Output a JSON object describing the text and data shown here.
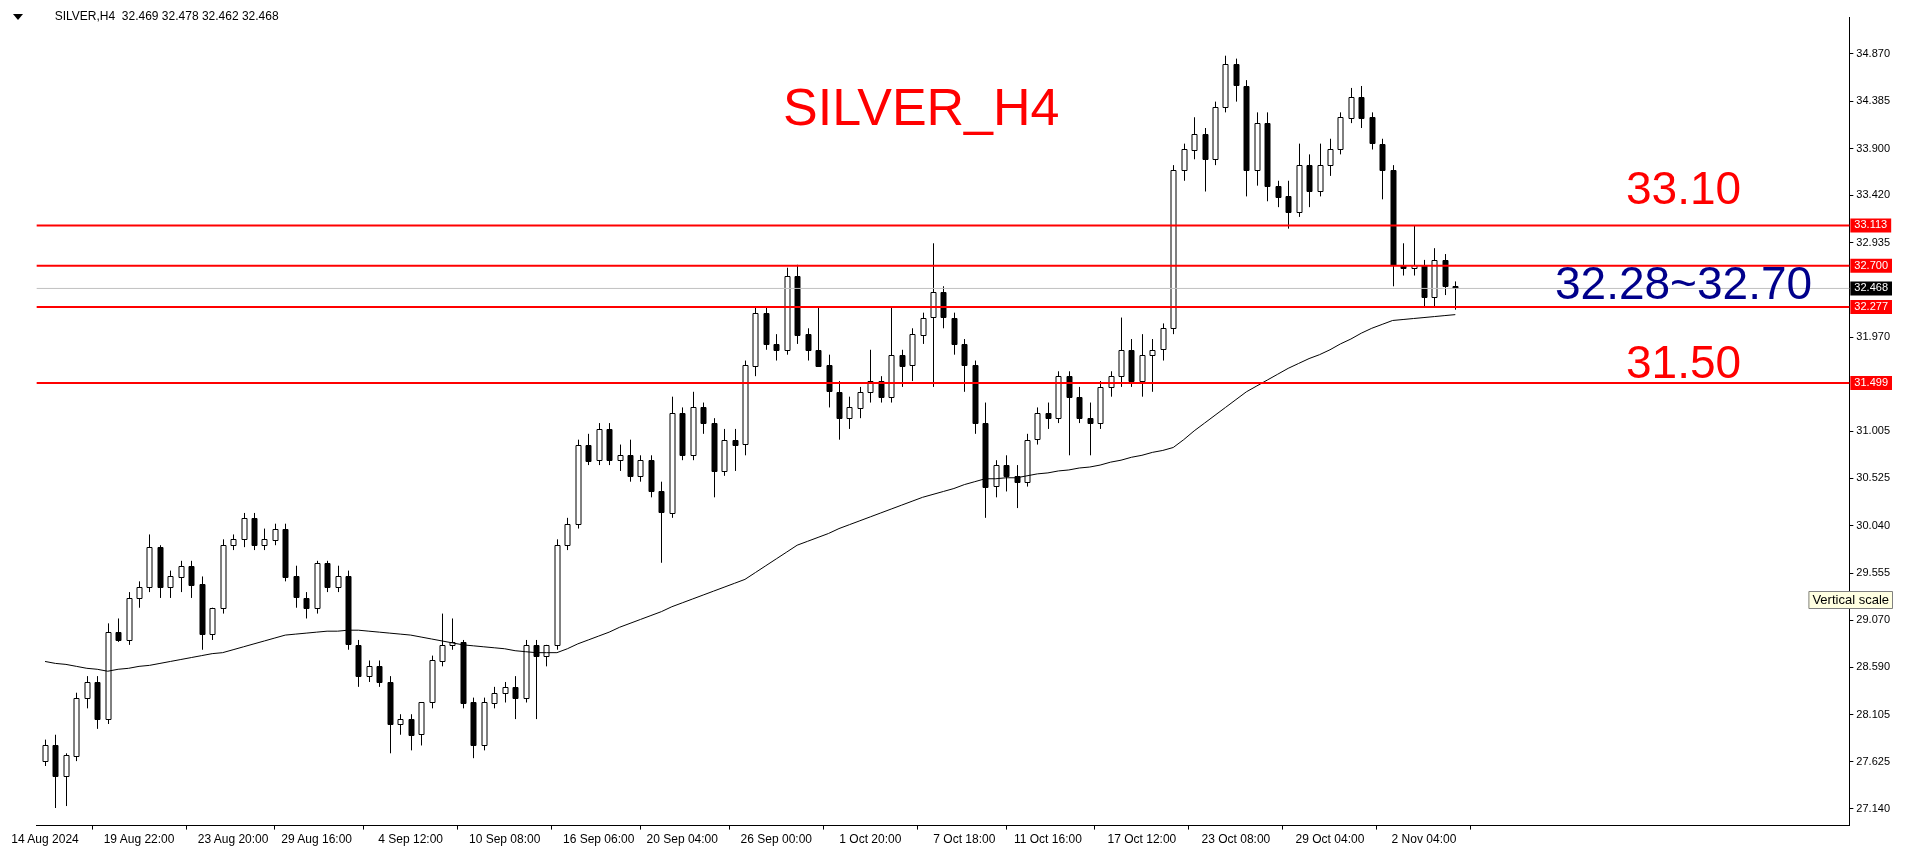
{
  "chart_data": {
    "type": "candlestick",
    "title": "SILVER_H4",
    "subtitle": "SILVER,H4  32.469 32.478 32.462 32.468",
    "color": "#000000",
    "categories": [
      "14 Aug 2024",
      null,
      null,
      null,
      null,
      null,
      null,
      null,
      null,
      "19 Aug 22:00",
      null,
      null,
      null,
      null,
      null,
      null,
      null,
      null,
      "23 Aug 20:00",
      null,
      null,
      null,
      null,
      null,
      null,
      null,
      "29 Aug 16:00",
      null,
      null,
      null,
      null,
      null,
      null,
      null,
      null,
      "4 Sep 12:00",
      null,
      null,
      null,
      null,
      null,
      null,
      null,
      null,
      "10 Sep 08:00",
      null,
      null,
      null,
      null,
      null,
      null,
      null,
      null,
      "16 Sep 06:00",
      null,
      null,
      null,
      null,
      null,
      null,
      null,
      "20 Sep 04:00",
      null,
      null,
      null,
      null,
      null,
      null,
      null,
      null,
      "26 Sep 00:00",
      null,
      null,
      null,
      null,
      null,
      null,
      null,
      null,
      "1 Oct 20:00",
      null,
      null,
      null,
      null,
      null,
      null,
      null,
      null,
      "7 Oct 18:00",
      null,
      null,
      null,
      null,
      null,
      null,
      null,
      "11 Oct 16:00",
      null,
      null,
      null,
      null,
      null,
      null,
      null,
      null,
      "17 Oct 12:00",
      null,
      null,
      null,
      null,
      null,
      null,
      null,
      null,
      "23 Oct 08:00",
      null,
      null,
      null,
      null,
      null,
      null,
      null,
      null,
      "29 Oct 04:00",
      null,
      null,
      null,
      null,
      null,
      null,
      null,
      null,
      "2 Nov 04:00",
      null,
      null,
      null
    ],
    "ohlc": [
      [
        27.63,
        27.85,
        27.58,
        27.79
      ],
      [
        27.79,
        27.9,
        27.15,
        27.47
      ],
      [
        27.47,
        27.71,
        27.17,
        27.69
      ],
      [
        27.69,
        28.33,
        27.63,
        28.28
      ],
      [
        28.28,
        28.5,
        28.17,
        28.44
      ],
      [
        28.44,
        28.5,
        27.96,
        28.06
      ],
      [
        28.06,
        29.04,
        28.01,
        28.95
      ],
      [
        28.95,
        29.09,
        28.85,
        28.87
      ],
      [
        28.87,
        29.36,
        28.82,
        29.3
      ],
      [
        29.3,
        29.47,
        29.2,
        29.41
      ],
      [
        29.41,
        29.95,
        29.36,
        29.82
      ],
      [
        29.82,
        29.84,
        29.3,
        29.41
      ],
      [
        29.41,
        29.58,
        29.3,
        29.52
      ],
      [
        29.52,
        29.68,
        29.36,
        29.63
      ],
      [
        29.63,
        29.68,
        29.3,
        29.44
      ],
      [
        29.44,
        29.52,
        28.77,
        28.93
      ],
      [
        28.93,
        29.2,
        28.87,
        29.2
      ],
      [
        29.2,
        29.9,
        29.14,
        29.84
      ],
      [
        29.84,
        29.95,
        29.79,
        29.9
      ],
      [
        29.9,
        30.17,
        29.82,
        30.12
      ],
      [
        30.12,
        30.17,
        29.79,
        29.84
      ],
      [
        29.84,
        30.01,
        29.79,
        29.9
      ],
      [
        29.9,
        30.06,
        29.84,
        30.01
      ],
      [
        30.01,
        30.06,
        29.47,
        29.52
      ],
      [
        29.52,
        29.63,
        29.2,
        29.3
      ],
      [
        29.3,
        29.36,
        29.09,
        29.2
      ],
      [
        29.2,
        29.68,
        29.14,
        29.66
      ],
      [
        29.66,
        29.68,
        29.36,
        29.41
      ],
      [
        29.41,
        29.63,
        29.36,
        29.52
      ],
      [
        29.52,
        29.58,
        28.77,
        28.82
      ],
      [
        28.82,
        28.87,
        28.39,
        28.5
      ],
      [
        28.5,
        28.66,
        28.44,
        28.6
      ],
      [
        28.6,
        28.66,
        28.39,
        28.44
      ],
      [
        28.44,
        28.5,
        27.71,
        28.01
      ],
      [
        28.01,
        28.11,
        27.9,
        28.06
      ],
      [
        28.06,
        28.11,
        27.74,
        27.9
      ],
      [
        27.9,
        28.23,
        27.79,
        28.23
      ],
      [
        28.23,
        28.71,
        28.17,
        28.66
      ],
      [
        28.66,
        29.14,
        28.6,
        28.82
      ],
      [
        28.82,
        29.09,
        28.77,
        28.85
      ],
      [
        28.85,
        28.87,
        28.17,
        28.23
      ],
      [
        28.23,
        28.28,
        27.66,
        27.79
      ],
      [
        27.79,
        28.28,
        27.74,
        28.23
      ],
      [
        28.23,
        28.39,
        28.17,
        28.33
      ],
      [
        28.33,
        28.44,
        28.23,
        28.39
      ],
      [
        28.39,
        28.5,
        28.06,
        28.28
      ],
      [
        28.28,
        28.87,
        28.23,
        28.82
      ],
      [
        28.82,
        28.87,
        28.06,
        28.71
      ],
      [
        28.71,
        28.82,
        28.6,
        28.82
      ],
      [
        28.82,
        29.9,
        28.77,
        29.84
      ],
      [
        29.84,
        30.12,
        29.79,
        30.06
      ],
      [
        30.06,
        30.92,
        30.01,
        30.87
      ],
      [
        30.87,
        30.98,
        30.66,
        30.71
      ],
      [
        30.71,
        31.09,
        30.66,
        31.03
      ],
      [
        31.03,
        31.09,
        30.66,
        30.71
      ],
      [
        30.71,
        30.87,
        30.6,
        30.76
      ],
      [
        30.76,
        30.92,
        30.49,
        30.55
      ],
      [
        30.55,
        30.76,
        30.49,
        30.71
      ],
      [
        30.71,
        30.76,
        30.33,
        30.39
      ],
      [
        30.39,
        30.49,
        29.66,
        30.17
      ],
      [
        30.17,
        31.36,
        30.12,
        31.19
      ],
      [
        31.19,
        31.25,
        30.71,
        30.76
      ],
      [
        30.76,
        31.41,
        30.71,
        31.25
      ],
      [
        31.25,
        31.3,
        30.98,
        31.09
      ],
      [
        31.09,
        31.14,
        30.33,
        30.6
      ],
      [
        30.6,
        31.03,
        30.55,
        30.92
      ],
      [
        30.92,
        31.03,
        30.6,
        30.87
      ],
      [
        30.87,
        31.73,
        30.76,
        31.68
      ],
      [
        31.68,
        32.27,
        31.57,
        32.22
      ],
      [
        32.22,
        32.27,
        31.84,
        31.9
      ],
      [
        31.9,
        32.0,
        31.73,
        31.84
      ],
      [
        31.84,
        32.68,
        31.79,
        32.6
      ],
      [
        32.6,
        32.71,
        31.9,
        32.0
      ],
      [
        32.0,
        32.06,
        31.73,
        31.84
      ],
      [
        31.84,
        32.27,
        31.68,
        31.68
      ],
      [
        31.68,
        31.79,
        31.25,
        31.41
      ],
      [
        31.41,
        31.52,
        30.92,
        31.14
      ],
      [
        31.14,
        31.36,
        31.03,
        31.25
      ],
      [
        31.25,
        31.46,
        31.14,
        31.41
      ],
      [
        31.41,
        31.84,
        31.3,
        31.52
      ],
      [
        31.52,
        31.57,
        31.3,
        31.36
      ],
      [
        31.36,
        32.27,
        31.3,
        31.79
      ],
      [
        31.79,
        31.84,
        31.46,
        31.68
      ],
      [
        31.68,
        32.06,
        31.52,
        32.0
      ],
      [
        32.0,
        32.22,
        31.9,
        32.17
      ],
      [
        32.17,
        32.93,
        31.46,
        32.43
      ],
      [
        32.43,
        32.49,
        32.06,
        32.17
      ],
      [
        32.17,
        32.22,
        31.79,
        31.9
      ],
      [
        31.9,
        31.95,
        31.41,
        31.68
      ],
      [
        31.68,
        31.73,
        30.98,
        31.09
      ],
      [
        31.09,
        31.3,
        30.12,
        30.44
      ],
      [
        30.44,
        30.71,
        30.33,
        30.66
      ],
      [
        30.66,
        30.76,
        30.39,
        30.55
      ],
      [
        30.55,
        30.66,
        30.22,
        30.49
      ],
      [
        30.49,
        30.98,
        30.44,
        30.92
      ],
      [
        30.92,
        31.25,
        30.87,
        31.19
      ],
      [
        31.19,
        31.3,
        31.03,
        31.14
      ],
      [
        31.14,
        31.62,
        31.09,
        31.57
      ],
      [
        31.57,
        31.62,
        30.76,
        31.36
      ],
      [
        31.36,
        31.46,
        31.09,
        31.14
      ],
      [
        31.14,
        31.3,
        30.76,
        31.09
      ],
      [
        31.09,
        31.52,
        31.03,
        31.46
      ],
      [
        31.46,
        31.62,
        31.36,
        31.57
      ],
      [
        31.57,
        32.17,
        31.46,
        31.84
      ],
      [
        31.84,
        31.95,
        31.46,
        31.52
      ],
      [
        31.52,
        32.0,
        31.36,
        31.79
      ],
      [
        31.79,
        31.95,
        31.41,
        31.84
      ],
      [
        31.84,
        32.11,
        31.73,
        32.06
      ],
      [
        32.06,
        33.73,
        32.0,
        33.68
      ],
      [
        33.68,
        33.95,
        33.57,
        33.89
      ],
      [
        33.89,
        34.22,
        33.79,
        34.05
      ],
      [
        34.05,
        34.11,
        33.46,
        33.79
      ],
      [
        33.79,
        34.38,
        33.73,
        34.32
      ],
      [
        34.32,
        34.85,
        34.27,
        34.76
      ],
      [
        34.76,
        34.82,
        34.38,
        34.54
      ],
      [
        34.54,
        34.6,
        33.41,
        33.68
      ],
      [
        33.68,
        34.27,
        33.52,
        34.16
      ],
      [
        34.16,
        34.27,
        33.36,
        33.52
      ],
      [
        33.52,
        33.57,
        33.3,
        33.41
      ],
      [
        33.41,
        33.57,
        33.08,
        33.25
      ],
      [
        33.25,
        33.95,
        33.2,
        33.73
      ],
      [
        33.73,
        33.84,
        33.3,
        33.46
      ],
      [
        33.46,
        33.95,
        33.41,
        33.73
      ],
      [
        33.73,
        34.0,
        33.62,
        33.89
      ],
      [
        33.89,
        34.27,
        33.84,
        34.22
      ],
      [
        34.22,
        34.52,
        34.16,
        34.43
      ],
      [
        34.43,
        34.54,
        34.11,
        34.22
      ],
      [
        34.22,
        34.27,
        33.89,
        33.95
      ],
      [
        33.95,
        34.0,
        33.38,
        33.68
      ],
      [
        33.68,
        33.73,
        32.49,
        32.71
      ],
      [
        32.71,
        32.93,
        32.6,
        32.68
      ],
      [
        32.68,
        33.11,
        32.6,
        32.71
      ],
      [
        32.71,
        32.76,
        32.27,
        32.38
      ],
      [
        32.38,
        32.88,
        32.27,
        32.76
      ],
      [
        32.76,
        32.82,
        32.4,
        32.49
      ],
      [
        32.49,
        32.54,
        32.25,
        32.468
      ]
    ],
    "colors": [
      "#ffffff",
      "#000000",
      "#ffffff",
      "#ffffff",
      "#ffffff",
      "#000000",
      "#ffffff",
      "#000000",
      "#ffffff",
      "#ffffff",
      "#ffffff",
      "#000000",
      "#ffffff",
      "#ffffff",
      "#000000",
      "#000000",
      "#ffffff",
      "#ffffff",
      "#ffffff",
      "#ffffff",
      "#000000",
      "#ffffff",
      "#ffffff",
      "#000000",
      "#000000",
      "#000000",
      "#ffffff",
      "#000000",
      "#ffffff",
      "#000000",
      "#000000",
      "#ffffff",
      "#000000",
      "#000000",
      "#ffffff",
      "#000000",
      "#ffffff",
      "#ffffff",
      "#ffffff",
      "#ffffff",
      "#000000",
      "#000000",
      "#ffffff",
      "#ffffff",
      "#ffffff",
      "#000000",
      "#ffffff",
      "#000000",
      "#ffffff",
      "#ffffff",
      "#ffffff",
      "#ffffff",
      "#000000",
      "#ffffff",
      "#000000",
      "#ffffff",
      "#000000",
      "#ffffff",
      "#000000",
      "#000000",
      "#ffffff",
      "#000000",
      "#ffffff",
      "#000000",
      "#000000",
      "#ffffff",
      "#000000",
      "#ffffff",
      "#ffffff",
      "#000000",
      "#000000",
      "#ffffff",
      "#000000",
      "#000000",
      "#000000",
      "#000000",
      "#000000",
      "#ffffff",
      "#ffffff",
      "#ffffff",
      "#000000",
      "#ffffff",
      "#000000",
      "#ffffff",
      "#ffffff",
      "#ffffff",
      "#000000",
      "#000000",
      "#000000",
      "#000000",
      "#000000",
      "#ffffff",
      "#000000",
      "#000000",
      "#ffffff",
      "#ffffff",
      "#000000",
      "#ffffff",
      "#000000",
      "#000000",
      "#000000",
      "#ffffff",
      "#ffffff",
      "#ffffff",
      "#000000",
      "#ffffff",
      "#ffffff",
      "#ffffff",
      "#ffffff",
      "#ffffff",
      "#ffffff",
      "#000000",
      "#ffffff",
      "#ffffff",
      "#000000",
      "#000000",
      "#ffffff",
      "#000000",
      "#000000",
      "#000000",
      "#ffffff",
      "#000000",
      "#ffffff",
      "#ffffff",
      "#ffffff",
      "#ffffff",
      "#000000",
      "#000000",
      "#000000",
      "#000000",
      "#000000",
      "#ffffff",
      "#000000",
      "#ffffff",
      "#000000",
      "#000000"
    ],
    "series": [
      {
        "type": "line",
        "color": "#000000",
        "values": [
          28.65,
          28.63,
          28.62,
          28.6,
          28.58,
          28.57,
          28.55,
          28.57,
          28.58,
          28.6,
          28.61,
          28.63,
          28.65,
          28.67,
          28.69,
          28.71,
          28.73,
          28.74,
          28.77,
          28.8,
          28.83,
          28.86,
          28.89,
          28.92,
          28.93,
          28.94,
          28.95,
          28.96,
          28.96,
          28.97,
          28.97,
          28.96,
          28.95,
          28.94,
          28.93,
          28.92,
          28.9,
          28.88,
          28.86,
          28.84,
          28.82,
          28.81,
          28.8,
          28.79,
          28.78,
          28.76,
          28.75,
          28.74,
          28.74,
          28.74,
          28.78,
          28.83,
          28.87,
          28.91,
          28.95,
          29.0,
          29.04,
          29.08,
          29.12,
          29.16,
          29.21,
          29.25,
          29.29,
          29.33,
          29.37,
          29.41,
          29.45,
          29.49,
          29.56,
          29.63,
          29.7,
          29.77,
          29.84,
          29.88,
          29.92,
          29.96,
          30.01,
          30.05,
          30.09,
          30.13,
          30.17,
          30.21,
          30.25,
          30.29,
          30.33,
          30.36,
          30.39,
          30.42,
          30.46,
          30.49,
          30.52,
          30.52,
          30.53,
          30.53,
          30.55,
          30.57,
          30.58,
          30.6,
          30.61,
          30.63,
          30.64,
          30.66,
          30.69,
          30.71,
          30.74,
          30.76,
          30.79,
          30.81,
          30.84,
          30.92,
          31.01,
          31.09,
          31.17,
          31.25,
          31.33,
          31.41,
          31.47,
          31.53,
          31.59,
          31.65,
          31.7,
          31.75,
          31.79,
          31.84,
          31.9,
          31.95,
          32.01,
          32.06,
          32.1,
          32.14,
          32.15,
          32.16,
          32.17,
          32.18,
          32.19,
          32.2
        ]
      }
    ],
    "ylim": [
      26.97,
      35.24
    ],
    "yticks": [
      {
        "value": 27.14,
        "label": "27.140"
      },
      {
        "value": 27.625,
        "label": "27.625"
      },
      {
        "value": 28.105,
        "label": "28.105"
      },
      {
        "value": 28.59,
        "label": "28.590"
      },
      {
        "value": 29.07,
        "label": "29.070"
      },
      {
        "value": 29.555,
        "label": "29.555"
      },
      {
        "value": 30.04,
        "label": "30.040"
      },
      {
        "value": 30.525,
        "label": "30.525"
      },
      {
        "value": 31.005,
        "label": "31.005"
      },
      {
        "value": 31.97,
        "label": "31.970"
      },
      {
        "value": 32.935,
        "label": "32.935"
      },
      {
        "value": 33.42,
        "label": "33.420"
      },
      {
        "value": 33.9,
        "label": "33.900"
      },
      {
        "value": 34.385,
        "label": "34.385"
      },
      {
        "value": 34.87,
        "label": "34.870"
      }
    ],
    "ref_lines": [
      {
        "axis": "y",
        "value": 33.113,
        "label": "33.113",
        "color": "#ff0000"
      },
      {
        "axis": "y",
        "value": 32.7,
        "label": "32.700",
        "color": "#ff0000"
      },
      {
        "axis": "y",
        "value": 32.468,
        "label": "32.468",
        "color": "#c0c0c0"
      },
      {
        "axis": "y",
        "value": 32.277,
        "label": "32.277",
        "color": "#ff0000"
      },
      {
        "axis": "y",
        "value": 31.499,
        "label": "31.499",
        "color": "#ff0000"
      }
    ],
    "annotations": [
      "33.10",
      "32.28~32.70",
      "31.50",
      "Vertical scale"
    ],
    "legend": false
  }
}
